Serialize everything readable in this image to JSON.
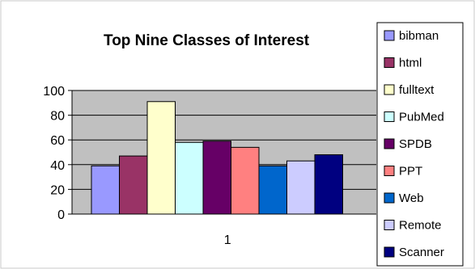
{
  "chart_data": {
    "type": "bar",
    "title": "Top Nine Classes of Interest",
    "xlabel": "",
    "ylabel": "",
    "categories": [
      "1"
    ],
    "ylim": [
      0,
      100
    ],
    "yticks": [
      0,
      20,
      40,
      60,
      80,
      100
    ],
    "grid": true,
    "legend_position": "right",
    "series": [
      {
        "name": "bibman",
        "values": [
          39
        ],
        "color": "#9999ff"
      },
      {
        "name": "html",
        "values": [
          47
        ],
        "color": "#993366"
      },
      {
        "name": "fulltext",
        "values": [
          91
        ],
        "color": "#ffffcc"
      },
      {
        "name": "PubMed",
        "values": [
          58
        ],
        "color": "#ccffff"
      },
      {
        "name": "SPDB",
        "values": [
          59
        ],
        "color": "#660066"
      },
      {
        "name": "PPT",
        "values": [
          54
        ],
        "color": "#ff8080"
      },
      {
        "name": "Web",
        "values": [
          39
        ],
        "color": "#0066cc"
      },
      {
        "name": "Remote",
        "values": [
          43
        ],
        "color": "#ccccff"
      },
      {
        "name": "Scanner",
        "values": [
          48
        ],
        "color": "#000080"
      }
    ],
    "plot_background": "#c0c0c0"
  }
}
